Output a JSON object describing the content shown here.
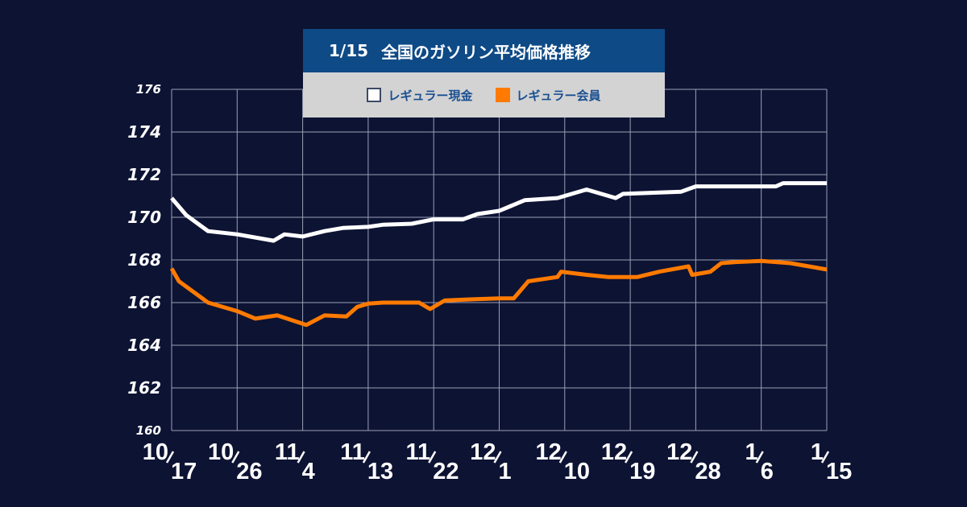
{
  "title": {
    "date": "1/15",
    "text": "全国のガソリン平均価格推移"
  },
  "colors": {
    "background": "#0d1333",
    "grid": "#9aa0b4",
    "cash": "#ffffff",
    "member": "#ff7a00",
    "title_bg": "#0e4a86",
    "legend_bg": "#d3d3d3",
    "legend_text": "#1a4f91"
  },
  "legend": [
    {
      "label": "レギュラー現金",
      "color": "#ffffff"
    },
    {
      "label": "レギュラー会員",
      "color": "#ff7a00"
    }
  ],
  "chart_data": {
    "type": "line",
    "ylim": [
      160,
      176
    ],
    "y_ticks": [
      160,
      162,
      164,
      166,
      168,
      170,
      172,
      174,
      176
    ],
    "x_range_days": [
      0,
      90
    ],
    "x_ticks": [
      {
        "day": 0,
        "num": "10",
        "den": "17"
      },
      {
        "day": 9,
        "num": "10",
        "den": "26"
      },
      {
        "day": 18,
        "num": "11",
        "den": "4"
      },
      {
        "day": 27,
        "num": "11",
        "den": "13"
      },
      {
        "day": 36,
        "num": "11",
        "den": "22"
      },
      {
        "day": 45,
        "num": "12",
        "den": "1"
      },
      {
        "day": 54,
        "num": "12",
        "den": "10"
      },
      {
        "day": 63,
        "num": "12",
        "den": "19"
      },
      {
        "day": 72,
        "num": "12",
        "den": "28"
      },
      {
        "day": 81,
        "num": "1",
        "den": "6"
      },
      {
        "day": 90,
        "num": "1",
        "den": "15"
      }
    ],
    "series": [
      {
        "name": "レギュラー現金",
        "color": "#ffffff",
        "points": [
          [
            0,
            170.9
          ],
          [
            2,
            170.1
          ],
          [
            5,
            169.35
          ],
          [
            9,
            169.2
          ],
          [
            14,
            168.9
          ],
          [
            15.5,
            169.2
          ],
          [
            18,
            169.1
          ],
          [
            21,
            169.35
          ],
          [
            23.5,
            169.5
          ],
          [
            27,
            169.55
          ],
          [
            29,
            169.65
          ],
          [
            33,
            169.7
          ],
          [
            36,
            169.9
          ],
          [
            40,
            169.9
          ],
          [
            42,
            170.15
          ],
          [
            45,
            170.3
          ],
          [
            48.5,
            170.8
          ],
          [
            53,
            170.9
          ],
          [
            57,
            171.3
          ],
          [
            61,
            170.9
          ],
          [
            62,
            171.1
          ],
          [
            70,
            171.2
          ],
          [
            72,
            171.45
          ],
          [
            83,
            171.45
          ],
          [
            84,
            171.6
          ],
          [
            90,
            171.6
          ]
        ]
      },
      {
        "name": "レギュラー会員",
        "color": "#ff7a00",
        "points": [
          [
            0,
            167.6
          ],
          [
            1,
            167.0
          ],
          [
            5,
            166.0
          ],
          [
            9,
            165.6
          ],
          [
            11.5,
            165.25
          ],
          [
            14.5,
            165.4
          ],
          [
            18.5,
            164.95
          ],
          [
            21,
            165.4
          ],
          [
            24,
            165.35
          ],
          [
            25.5,
            165.8
          ],
          [
            27,
            165.95
          ],
          [
            29,
            166.0
          ],
          [
            34,
            166.0
          ],
          [
            35.5,
            165.7
          ],
          [
            37.5,
            166.1
          ],
          [
            41,
            166.15
          ],
          [
            45,
            166.2
          ],
          [
            47,
            166.2
          ],
          [
            49,
            167.0
          ],
          [
            53,
            167.2
          ],
          [
            53.5,
            167.45
          ],
          [
            57,
            167.3
          ],
          [
            60,
            167.2
          ],
          [
            64,
            167.2
          ],
          [
            67,
            167.45
          ],
          [
            71,
            167.7
          ],
          [
            71.5,
            167.3
          ],
          [
            74,
            167.45
          ],
          [
            75.5,
            167.85
          ],
          [
            77.5,
            167.9
          ],
          [
            81,
            167.95
          ],
          [
            85,
            167.85
          ],
          [
            90,
            167.55
          ]
        ]
      }
    ]
  }
}
